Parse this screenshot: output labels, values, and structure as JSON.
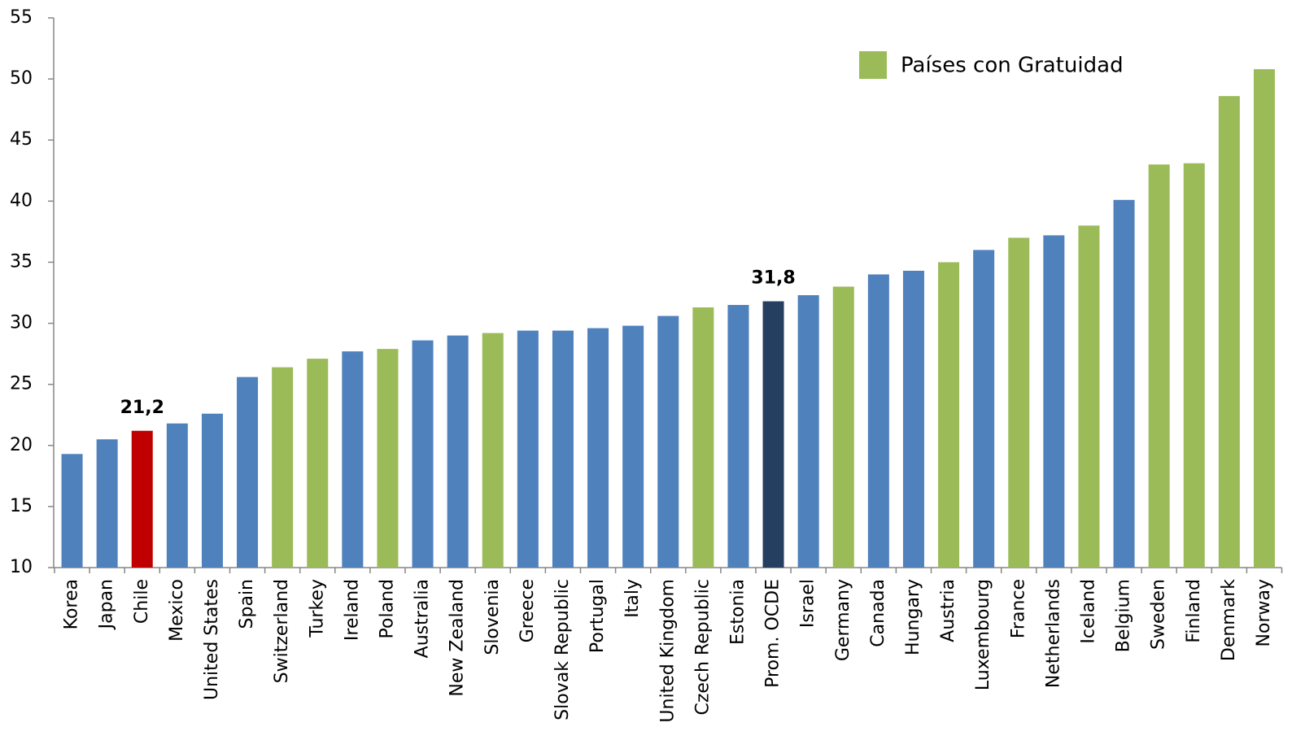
{
  "chart_data": {
    "type": "bar",
    "categories": [
      "Korea",
      "Japan",
      "Chile",
      "Mexico",
      "United States",
      "Spain",
      "Switzerland",
      "Turkey",
      "Ireland",
      "Poland",
      "Australia",
      "New Zealand",
      "Slovenia",
      "Greece",
      "Slovak Republic",
      "Portugal",
      "Italy",
      "United Kingdom",
      "Czech Republic",
      "Estonia",
      "Prom. OCDE",
      "Israel",
      "Germany",
      "Canada",
      "Hungary",
      "Austria",
      "Luxembourg",
      "France",
      "Netherlands",
      "Iceland",
      "Belgium",
      "Sweden",
      "Finland",
      "Denmark",
      "Norway"
    ],
    "values": [
      19.3,
      20.5,
      21.2,
      21.8,
      22.6,
      25.6,
      26.4,
      27.1,
      27.7,
      27.9,
      28.6,
      29.0,
      29.2,
      29.4,
      29.4,
      29.6,
      29.8,
      30.6,
      31.3,
      31.5,
      31.8,
      32.3,
      33.0,
      34.0,
      34.3,
      35.0,
      36.0,
      37.0,
      37.2,
      38.0,
      40.1,
      43.0,
      43.1,
      48.6,
      50.8
    ],
    "value_labels": [
      null,
      null,
      "21,2",
      null,
      null,
      null,
      null,
      null,
      null,
      null,
      null,
      null,
      null,
      null,
      null,
      null,
      null,
      null,
      null,
      null,
      "31,8",
      null,
      null,
      null,
      null,
      null,
      null,
      null,
      null,
      null,
      null,
      null,
      null,
      null,
      null
    ],
    "colors": [
      "#4f81bd",
      "#4f81bd",
      "#c00000",
      "#4f81bd",
      "#4f81bd",
      "#4f81bd",
      "#9bbb59",
      "#9bbb59",
      "#4f81bd",
      "#9bbb59",
      "#4f81bd",
      "#4f81bd",
      "#9bbb59",
      "#4f81bd",
      "#4f81bd",
      "#4f81bd",
      "#4f81bd",
      "#4f81bd",
      "#9bbb59",
      "#4f81bd",
      "#243f60",
      "#4f81bd",
      "#9bbb59",
      "#4f81bd",
      "#4f81bd",
      "#9bbb59",
      "#4f81bd",
      "#9bbb59",
      "#4f81bd",
      "#9bbb59",
      "#4f81bd",
      "#9bbb59",
      "#9bbb59",
      "#9bbb59",
      "#9bbb59"
    ],
    "legend": {
      "label": "Países con Gratuidad",
      "color": "#9bbb59",
      "position": "upper right"
    },
    "ylim": [
      10,
      55
    ],
    "yticks": [
      10,
      15,
      20,
      25,
      30,
      35,
      40,
      45,
      50,
      55
    ],
    "grid": false
  }
}
